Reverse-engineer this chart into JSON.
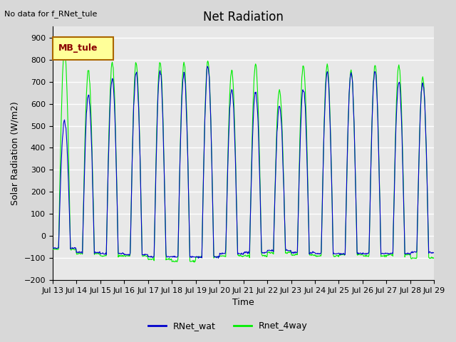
{
  "title": "Net Radiation",
  "no_data_text": "No data for f_RNet_tule",
  "mb_tule_label": "MB_tule",
  "ylabel": "Solar Radiation (W/m2)",
  "xlabel": "Time",
  "ylim": [
    -200,
    950
  ],
  "yticks": [
    -200,
    -100,
    0,
    100,
    200,
    300,
    400,
    500,
    600,
    700,
    800,
    900
  ],
  "bg_color": "#d8d8d8",
  "plot_bg_color": "#e8e8e8",
  "grid_color": "#ffffff",
  "line1_color": "#0000cc",
  "line2_color": "#00ee00",
  "legend_entries": [
    "RNet_wat",
    "Rnet_4way"
  ],
  "n_days": 16,
  "start_day": 13,
  "peak_values": [
    845,
    750,
    785,
    785,
    790,
    790,
    790,
    750,
    780,
    665,
    775,
    775,
    750,
    775,
    775,
    720
  ],
  "blue_peak_values": [
    525,
    640,
    710,
    745,
    750,
    740,
    770,
    665,
    660,
    590,
    665,
    745,
    745,
    745,
    700,
    700
  ],
  "trough_blue": [
    -55,
    -75,
    -80,
    -85,
    -95,
    -95,
    -95,
    -80,
    -75,
    -65,
    -75,
    -80,
    -80,
    -80,
    -80,
    -75
  ],
  "trough_green": [
    -60,
    -80,
    -90,
    -90,
    -105,
    -115,
    -95,
    -90,
    -90,
    -75,
    -85,
    -90,
    -85,
    -90,
    -85,
    -100
  ],
  "day_points": 48
}
